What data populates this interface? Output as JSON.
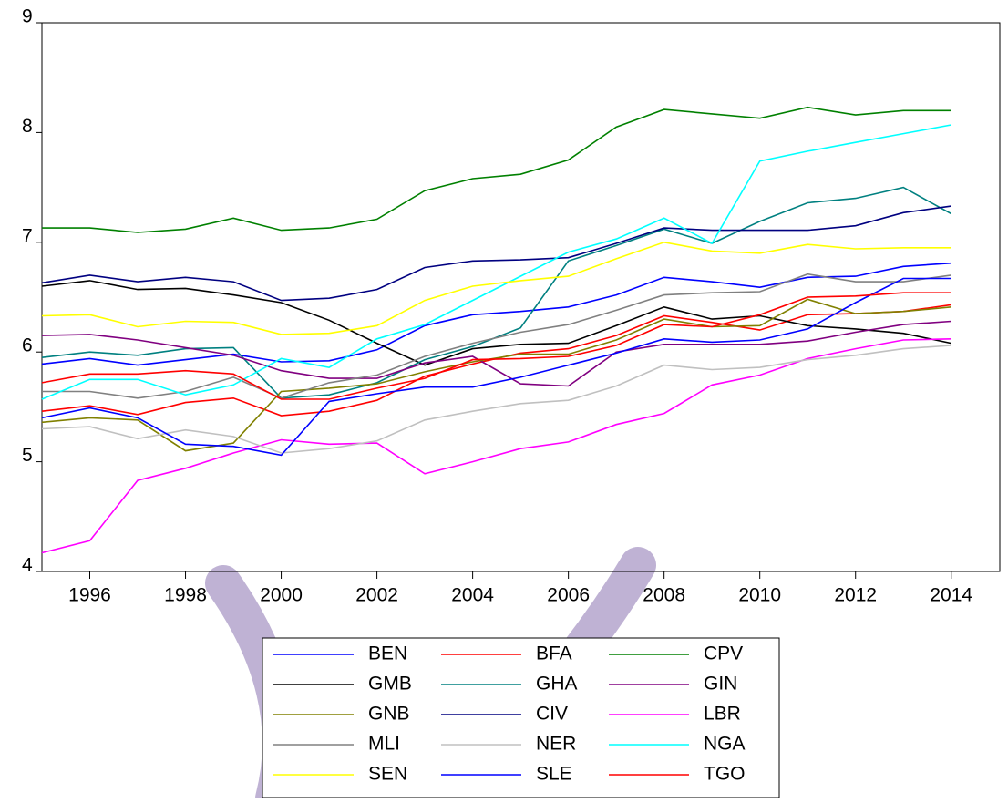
{
  "chart_data": {
    "type": "line",
    "x": [
      1995,
      1996,
      1997,
      1998,
      1999,
      2000,
      2001,
      2002,
      2003,
      2004,
      2005,
      2006,
      2007,
      2008,
      2009,
      2010,
      2011,
      2012,
      2013,
      2014
    ],
    "xlim": [
      1995,
      2014.5
    ],
    "xticks": [
      1996,
      1998,
      2000,
      2002,
      2004,
      2006,
      2008,
      2010,
      2012,
      2014
    ],
    "ylim": [
      4,
      9
    ],
    "yticks": [
      4,
      5,
      6,
      7,
      8,
      9
    ],
    "legend": "bottom",
    "series": [
      {
        "name": "BEN",
        "color": "#0000ff",
        "values": [
          5.89,
          5.94,
          5.88,
          5.93,
          5.98,
          5.91,
          5.92,
          6.02,
          6.24,
          6.34,
          6.37,
          6.41,
          6.52,
          6.68,
          6.64,
          6.59,
          6.68,
          6.69,
          6.78,
          6.81
        ]
      },
      {
        "name": "BFA",
        "color": "#ff0000",
        "values": [
          5.46,
          5.51,
          5.43,
          5.54,
          5.58,
          5.42,
          5.46,
          5.56,
          5.78,
          5.89,
          5.99,
          6.03,
          6.15,
          6.33,
          6.27,
          6.2,
          6.34,
          6.35,
          6.37,
          6.43
        ]
      },
      {
        "name": "CPV",
        "color": "#008000",
        "values": [
          7.13,
          7.13,
          7.09,
          7.12,
          7.22,
          7.11,
          7.13,
          7.21,
          7.47,
          7.58,
          7.62,
          7.75,
          8.05,
          8.21,
          8.17,
          8.13,
          8.23,
          8.16,
          8.2,
          8.2
        ]
      },
      {
        "name": "GMB",
        "color": "#000000",
        "values": [
          6.6,
          6.65,
          6.57,
          6.58,
          6.52,
          6.45,
          6.29,
          6.08,
          5.88,
          6.03,
          6.07,
          6.08,
          6.24,
          6.41,
          6.3,
          6.33,
          6.24,
          6.21,
          6.17,
          6.08
        ]
      },
      {
        "name": "GHA",
        "color": "#008080",
        "values": [
          5.95,
          6.0,
          5.97,
          6.03,
          6.04,
          5.58,
          5.61,
          5.72,
          5.93,
          6.05,
          6.22,
          6.83,
          6.97,
          7.12,
          6.99,
          7.19,
          7.36,
          7.4,
          7.5,
          7.26
        ]
      },
      {
        "name": "GIN",
        "color": "#800080",
        "values": [
          6.15,
          6.16,
          6.11,
          6.04,
          5.97,
          5.83,
          5.76,
          5.76,
          5.9,
          5.96,
          5.71,
          5.69,
          6.0,
          6.07,
          6.07,
          6.07,
          6.1,
          6.18,
          6.25,
          6.28
        ]
      },
      {
        "name": "GNB",
        "color": "#808000",
        "values": [
          5.36,
          5.4,
          5.38,
          5.1,
          5.17,
          5.64,
          5.67,
          5.71,
          5.82,
          5.91,
          5.98,
          5.98,
          6.11,
          6.3,
          6.23,
          6.24,
          6.48,
          6.35,
          6.37,
          6.41
        ]
      },
      {
        "name": "CIV",
        "color": "#000080",
        "values": [
          6.63,
          6.7,
          6.64,
          6.68,
          6.64,
          6.47,
          6.49,
          6.57,
          6.77,
          6.83,
          6.84,
          6.86,
          6.99,
          7.13,
          7.11,
          7.11,
          7.11,
          7.15,
          7.27,
          7.33
        ]
      },
      {
        "name": "LBR",
        "color": "#ff00ff",
        "values": [
          4.17,
          4.28,
          4.83,
          4.94,
          5.08,
          5.2,
          5.16,
          5.17,
          4.89,
          5.0,
          5.12,
          5.18,
          5.34,
          5.44,
          5.7,
          5.79,
          5.94,
          6.03,
          6.11,
          6.12
        ]
      },
      {
        "name": "MLI",
        "color": "#808080",
        "values": [
          5.64,
          5.64,
          5.58,
          5.64,
          5.77,
          5.58,
          5.72,
          5.79,
          5.96,
          6.08,
          6.18,
          6.25,
          6.38,
          6.52,
          6.54,
          6.55,
          6.71,
          6.64,
          6.64,
          6.7
        ]
      },
      {
        "name": "NER",
        "color": "#c0c0c0",
        "values": [
          5.3,
          5.32,
          5.21,
          5.29,
          5.23,
          5.08,
          5.12,
          5.19,
          5.38,
          5.46,
          5.53,
          5.56,
          5.69,
          5.88,
          5.84,
          5.86,
          5.93,
          5.97,
          6.03,
          6.06
        ]
      },
      {
        "name": "NGA",
        "color": "#00ffff",
        "values": [
          5.57,
          5.75,
          5.75,
          5.61,
          5.7,
          5.94,
          5.86,
          6.12,
          6.25,
          6.47,
          6.69,
          6.91,
          7.03,
          7.22,
          6.99,
          7.74,
          7.83,
          7.91,
          7.99,
          8.07
        ]
      },
      {
        "name": "SEN",
        "color": "#ffff00",
        "values": [
          6.33,
          6.34,
          6.23,
          6.28,
          6.27,
          6.16,
          6.17,
          6.24,
          6.47,
          6.6,
          6.65,
          6.69,
          6.85,
          7.0,
          6.92,
          6.9,
          6.98,
          6.94,
          6.95,
          6.95
        ]
      },
      {
        "name": "SLE",
        "color": "#0000ff",
        "values": [
          5.4,
          5.49,
          5.4,
          5.16,
          5.14,
          5.06,
          5.55,
          5.62,
          5.68,
          5.68,
          5.77,
          5.88,
          5.99,
          6.12,
          6.09,
          6.11,
          6.21,
          6.45,
          6.67,
          6.67
        ]
      },
      {
        "name": "TGO",
        "color": "#ff0000",
        "values": [
          5.72,
          5.8,
          5.8,
          5.83,
          5.8,
          5.57,
          5.57,
          5.67,
          5.76,
          5.93,
          5.94,
          5.96,
          6.06,
          6.25,
          6.23,
          6.34,
          6.5,
          6.51,
          6.54,
          6.54
        ]
      }
    ]
  }
}
